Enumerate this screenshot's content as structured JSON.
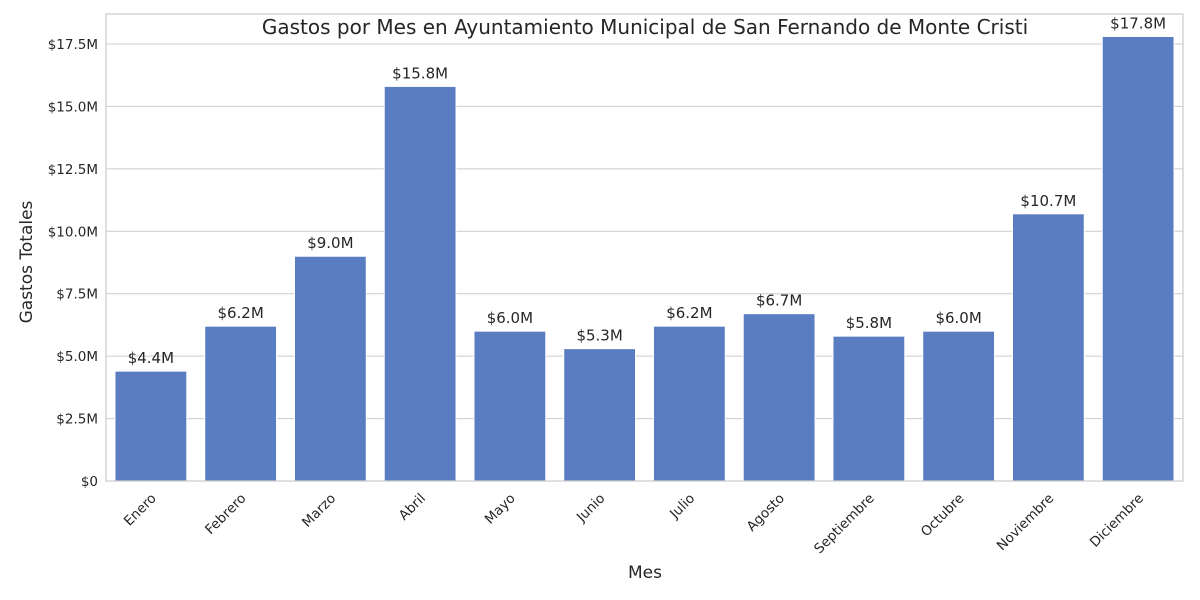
{
  "chart_data": {
    "type": "bar",
    "title": "Gastos por Mes en Ayuntamiento Municipal de San Fernando de Monte Cristi",
    "xlabel": "Mes",
    "ylabel": "Gastos Totales",
    "categories": [
      "Enero",
      "Febrero",
      "Marzo",
      "Abril",
      "Mayo",
      "Junio",
      "Julio",
      "Agosto",
      "Septiembre",
      "Octubre",
      "Noviembre",
      "Diciembre"
    ],
    "values": [
      4.4,
      6.2,
      9.0,
      15.8,
      6.0,
      5.3,
      6.2,
      6.7,
      5.8,
      6.0,
      10.7,
      17.8
    ],
    "value_labels": [
      "$4.4M",
      "$6.2M",
      "$9.0M",
      "$15.8M",
      "$6.0M",
      "$5.3M",
      "$6.2M",
      "$6.7M",
      "$5.8M",
      "$6.0M",
      "$10.7M",
      "$17.8M"
    ],
    "ylim": [
      0,
      18.7
    ],
    "yticks": [
      0,
      2.5,
      5.0,
      7.5,
      10.0,
      12.5,
      15.0,
      17.5
    ],
    "ytick_labels": [
      "$0",
      "$2.5M",
      "$5.0M",
      "$7.5M",
      "$10.0M",
      "$12.5M",
      "$15.0M",
      "$17.5M"
    ],
    "grid": "horizontal",
    "bar_color": "#5a7dc2",
    "grid_color": "#cccccc",
    "text_color": "#262626"
  }
}
